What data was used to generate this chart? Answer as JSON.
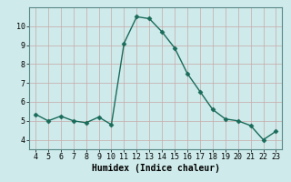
{
  "x": [
    4,
    5,
    6,
    7,
    8,
    9,
    10,
    11,
    12,
    13,
    14,
    15,
    16,
    17,
    18,
    19,
    20,
    21,
    22,
    23
  ],
  "y": [
    5.35,
    5.0,
    5.25,
    5.0,
    4.9,
    5.2,
    4.8,
    9.1,
    10.5,
    10.4,
    9.7,
    8.85,
    7.5,
    6.55,
    5.6,
    5.1,
    5.0,
    4.75,
    4.0,
    4.45
  ],
  "line_color": "#1a6b5a",
  "marker": "D",
  "marker_size": 2.5,
  "bg_color": "#ceeaea",
  "grid_color_major": "#b0c8c8",
  "grid_color_minor": "#b0c8c8",
  "xlabel": "Humidex (Indice chaleur)",
  "xlim": [
    3.5,
    23.5
  ],
  "ylim": [
    3.5,
    11.0
  ],
  "yticks": [
    4,
    5,
    6,
    7,
    8,
    9,
    10
  ],
  "xticks": [
    4,
    5,
    6,
    7,
    8,
    9,
    10,
    11,
    12,
    13,
    14,
    15,
    16,
    17,
    18,
    19,
    20,
    21,
    22,
    23
  ],
  "label_fontsize": 7,
  "tick_fontsize": 6,
  "linewidth": 1.0
}
